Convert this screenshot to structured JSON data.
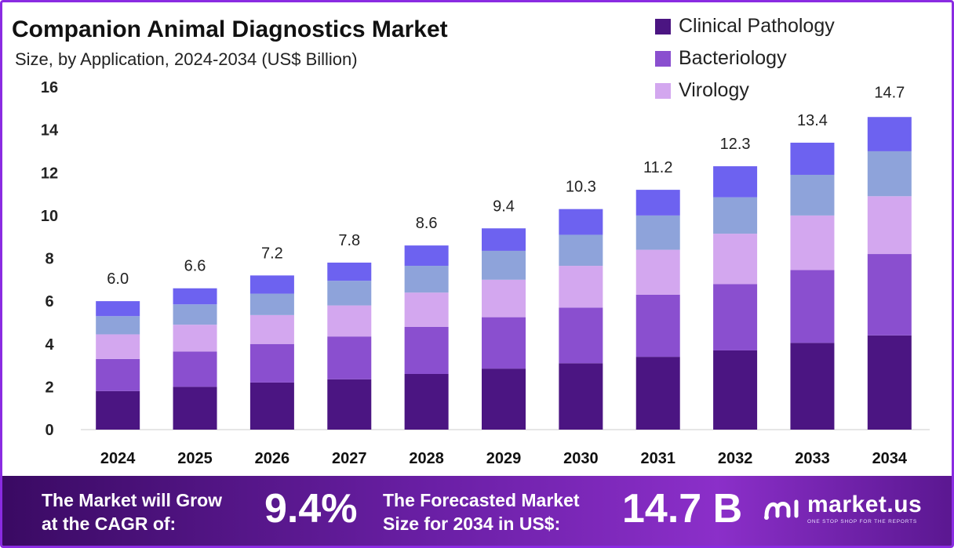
{
  "header": {
    "title": "Companion Animal Diagnostics Market",
    "subtitle": "Size, by Application, 2024-2034 (US$ Billion)"
  },
  "colors": {
    "clinical_pathology": "#4b1582",
    "bacteriology": "#8a4fcf",
    "virology": "#d3a7ef",
    "segment_4": "#8ea3da",
    "segment_5": "#6d62f0",
    "footer_gradient": [
      "#3a0a63",
      "#8b2fc9"
    ],
    "frame": "#8a2be2"
  },
  "chart_data": {
    "type": "bar",
    "stacked": true,
    "title": "Companion Animal Diagnostics Market",
    "subtitle": "Size, by Application, 2024-2034 (US$ Billion)",
    "categories": [
      "2024",
      "2025",
      "2026",
      "2027",
      "2028",
      "2029",
      "2030",
      "2031",
      "2032",
      "2033",
      "2034"
    ],
    "series": [
      {
        "name": "Clinical Pathology",
        "color": "#4b1582",
        "values": [
          1.8,
          2.0,
          2.2,
          2.35,
          2.6,
          2.85,
          3.1,
          3.4,
          3.7,
          4.05,
          4.4
        ]
      },
      {
        "name": "Bacteriology",
        "color": "#8a4fcf",
        "values": [
          1.5,
          1.65,
          1.8,
          2.0,
          2.2,
          2.4,
          2.6,
          2.9,
          3.1,
          3.4,
          3.8
        ]
      },
      {
        "name": "Virology",
        "color": "#d3a7ef",
        "values": [
          1.15,
          1.25,
          1.35,
          1.45,
          1.6,
          1.75,
          1.95,
          2.1,
          2.35,
          2.55,
          2.7
        ]
      },
      {
        "color": "#8ea3da",
        "values": [
          0.85,
          0.95,
          1.0,
          1.15,
          1.25,
          1.35,
          1.45,
          1.6,
          1.7,
          1.9,
          2.1
        ]
      },
      {
        "color": "#6d62f0",
        "values": [
          0.7,
          0.75,
          0.85,
          0.85,
          0.95,
          1.05,
          1.2,
          1.2,
          1.45,
          1.5,
          1.6
        ]
      }
    ],
    "totals": [
      6.0,
      6.6,
      7.2,
      7.8,
      8.6,
      9.4,
      10.3,
      11.2,
      12.3,
      13.4,
      14.7
    ],
    "total_labels": [
      "6.0",
      "6.6",
      "7.2",
      "7.8",
      "8.6",
      "9.4",
      "10.3",
      "11.2",
      "12.3",
      "13.4",
      "14.7"
    ],
    "ylim": [
      0,
      16
    ],
    "yticks": [
      0,
      2,
      4,
      6,
      8,
      10,
      12,
      14,
      16
    ],
    "xlabel": "",
    "ylabel": "",
    "grid": false,
    "legend_position": "top-right"
  },
  "legend": {
    "items": [
      {
        "label": "Clinical Pathology",
        "color": "#4b1582"
      },
      {
        "label": "Bacteriology",
        "color": "#8a4fcf"
      },
      {
        "label": "Virology",
        "color": "#d3a7ef"
      }
    ]
  },
  "footer": {
    "cagr_label_line1": "The Market will Grow",
    "cagr_label_line2": "at the CAGR of:",
    "cagr_value": "9.4%",
    "forecast_label_line1": "The Forecasted Market",
    "forecast_label_line2": "Size for 2034 in US$:",
    "forecast_value": "14.7 B",
    "brand_name": "market.us",
    "brand_tagline": "ONE STOP SHOP FOR THE REPORTS",
    "brand_icon": "market-us-logo-icon"
  }
}
